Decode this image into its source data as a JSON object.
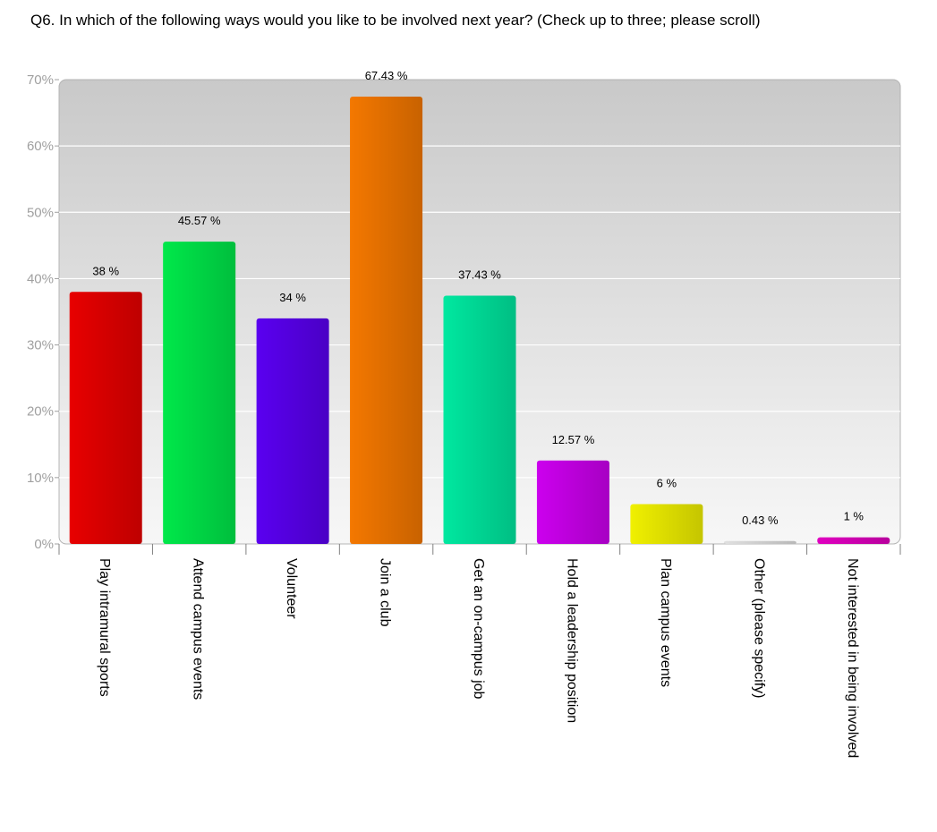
{
  "chart_data": {
    "type": "bar",
    "title": "Q6. In which of the following ways would you like to be involved next year? (Check up to three; please scroll)",
    "xlabel": "",
    "ylabel": "",
    "ylim": [
      0,
      70
    ],
    "yticks": [
      "0%",
      "10%",
      "20%",
      "30%",
      "40%",
      "50%",
      "60%",
      "70%"
    ],
    "grid": true,
    "legend": "none",
    "categories": [
      "Play intramural sports",
      "Attend campus events",
      "Volunteer",
      "Join a club",
      "Get an on-campus job",
      "Hold a leadership position",
      "Plan campus events",
      "Other (please specify)",
      "Not interested in being involved"
    ],
    "values": [
      38,
      45.57,
      34,
      67.43,
      37.43,
      12.57,
      6,
      0.43,
      1
    ],
    "value_labels": [
      "38 %",
      "45.57 %",
      "34 %",
      "67.43 %",
      "37.43 %",
      "12.57 %",
      "6 %",
      "0.43 %",
      "1 %"
    ],
    "colors": [
      "#e80000",
      "#00e84a",
      "#5a00f0",
      "#f47800",
      "#00e8a0",
      "#cc00ee",
      "#f0f000",
      "#e0e0e0",
      "#e000c0"
    ]
  }
}
